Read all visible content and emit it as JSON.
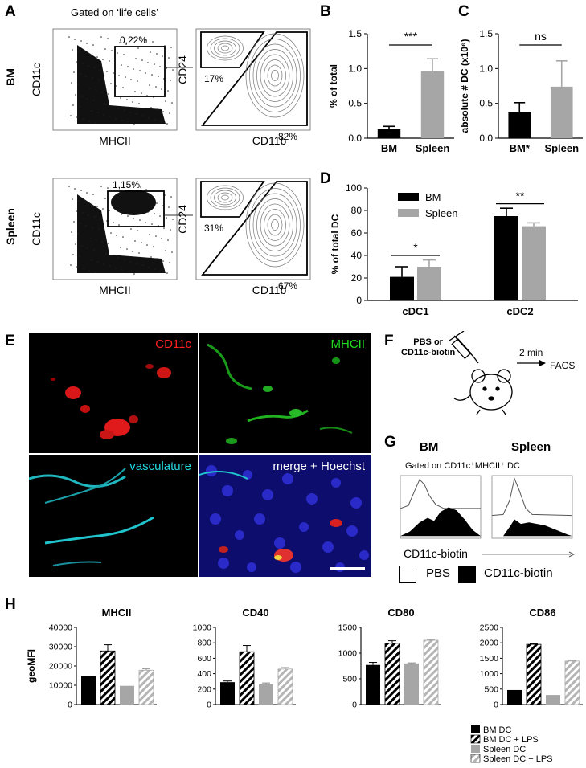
{
  "panel_letters": {
    "A": "A",
    "B": "B",
    "C": "C",
    "D": "D",
    "E": "E",
    "F": "F",
    "G": "G",
    "H": "H"
  },
  "panel_a": {
    "gating_note": "Gated on ‘life cells’",
    "rows": [
      {
        "label": "BM",
        "scatter_x": "MHCII",
        "scatter_y": "CD11c",
        "gate_pct": "0,22%",
        "contour_x": "CD11b",
        "contour_y": "CD24",
        "pct_upper": "17%",
        "pct_lower": "82%"
      },
      {
        "label": "Spleen",
        "scatter_x": "MHCII",
        "scatter_y": "CD11c",
        "gate_pct": "1,15%",
        "contour_x": "CD11b",
        "contour_y": "CD24",
        "pct_upper": "31%",
        "pct_lower": "67%"
      }
    ]
  },
  "chart_data": [
    {
      "id": "B",
      "type": "bar",
      "categories": [
        "BM",
        "Spleen"
      ],
      "values": [
        0.13,
        0.96
      ],
      "errors": [
        0.04,
        0.18
      ],
      "ylabel": "% of total",
      "ylim": [
        0,
        1.5
      ],
      "yticks": [
        "0.0",
        "0.5",
        "1.0",
        "1.5"
      ],
      "significance": "***",
      "colors": [
        "#000000",
        "#a6a6a6"
      ]
    },
    {
      "id": "C",
      "type": "bar",
      "categories": [
        "BM*",
        "Spleen"
      ],
      "values": [
        0.37,
        0.74
      ],
      "errors": [
        0.14,
        0.37
      ],
      "ylabel": "absolute # DC (x10⁶)",
      "ylim": [
        0,
        1.5
      ],
      "yticks": [
        "0.0",
        "0.5",
        "1.0",
        "1.5"
      ],
      "significance": "ns",
      "colors": [
        "#000000",
        "#a6a6a6"
      ]
    },
    {
      "id": "D",
      "type": "bar",
      "categories": [
        "cDC1",
        "cDC2"
      ],
      "series": [
        {
          "name": "BM",
          "values": [
            21,
            75
          ],
          "errors": [
            9,
            7
          ],
          "color": "#000000"
        },
        {
          "name": "Spleen",
          "values": [
            30,
            66
          ],
          "errors": [
            6,
            3
          ],
          "color": "#a6a6a6"
        }
      ],
      "ylabel": "% of total DC",
      "ylim": [
        0,
        100
      ],
      "yticks": [
        "0",
        "20",
        "40",
        "60",
        "80",
        "100"
      ],
      "significance": [
        "*",
        "**"
      ]
    },
    {
      "id": "H-MHCII",
      "type": "bar",
      "title": "MHCII",
      "ylabel": "geoMFI",
      "categories": [
        "BM DC",
        "BM DC + LPS",
        "Spleen DC",
        "Spleen DC + LPS"
      ],
      "values": [
        14800,
        27800,
        9700,
        17800
      ],
      "errors": [
        0,
        3200,
        0,
        700
      ],
      "ylim": [
        0,
        40000
      ],
      "yticks": [
        "0",
        "10000",
        "20000",
        "30000",
        "40000"
      ]
    },
    {
      "id": "H-CD40",
      "type": "bar",
      "title": "CD40",
      "categories": [
        "BM DC",
        "BM DC + LPS",
        "Spleen DC",
        "Spleen DC + LPS"
      ],
      "values": [
        290,
        685,
        265,
        460
      ],
      "errors": [
        15,
        80,
        15,
        20
      ],
      "ylim": [
        0,
        1000
      ],
      "yticks": [
        "0",
        "200",
        "400",
        "600",
        "800",
        "1000"
      ]
    },
    {
      "id": "H-CD80",
      "type": "bar",
      "title": "CD80",
      "categories": [
        "BM DC",
        "BM DC + LPS",
        "Spleen DC",
        "Spleen DC + LPS"
      ],
      "values": [
        770,
        1190,
        800,
        1250
      ],
      "errors": [
        50,
        50,
        10,
        15
      ],
      "ylim": [
        0,
        1500
      ],
      "yticks": [
        "0",
        "500",
        "1000",
        "1500"
      ]
    },
    {
      "id": "H-CD86",
      "type": "bar",
      "title": "CD86",
      "categories": [
        "BM DC",
        "BM DC + LPS",
        "Spleen DC",
        "Spleen DC + LPS"
      ],
      "values": [
        470,
        1950,
        310,
        1410
      ],
      "errors": [
        0,
        15,
        0,
        25
      ],
      "ylim": [
        0,
        2500
      ],
      "yticks": [
        "0",
        "500",
        "1000",
        "1500",
        "2000",
        "2500"
      ]
    }
  ],
  "panel_e": {
    "labels": [
      "CD11c",
      "MHCII",
      "vasculature",
      "merge + Hoechst"
    ],
    "colors": [
      "#ff2020",
      "#22dd22",
      "#22d8e0",
      "#ffffff"
    ]
  },
  "panel_f": {
    "injection": "PBS or\nCD11c-biotin",
    "time": "2 min",
    "readout": "FACS"
  },
  "panel_g": {
    "col_bm": "BM",
    "col_spleen": "Spleen",
    "gating_note": "Gated on CD11c⁺MHCII⁺ DC",
    "x_label": "CD11c-biotin",
    "legend_pbs": "PBS",
    "legend_biotin": "CD11c-biotin"
  },
  "panel_h": {
    "legend": [
      "BM DC",
      "BM DC + LPS",
      "Spleen DC",
      "Spleen DC + LPS"
    ]
  }
}
